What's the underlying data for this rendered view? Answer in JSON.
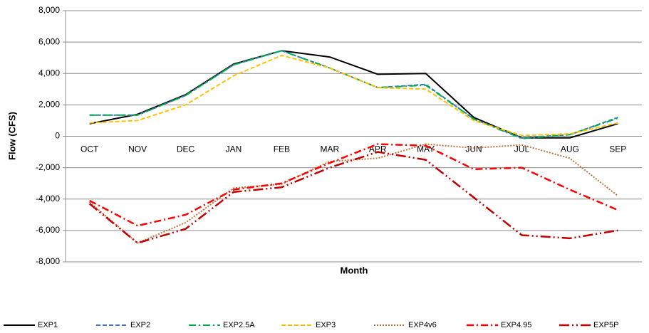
{
  "chart_data": {
    "type": "line",
    "xlabel": "Month",
    "ylabel": "Flow (CFS)",
    "categories": [
      "OCT",
      "NOV",
      "DEC",
      "JAN",
      "FEB",
      "MAR",
      "APR",
      "MAY",
      "JUN",
      "JUL",
      "AUG",
      "SEP"
    ],
    "ylim": [
      -8000,
      8000
    ],
    "yticks": [
      {
        "value": -8000,
        "label": "-8,000"
      },
      {
        "value": -6000,
        "label": "-6,000"
      },
      {
        "value": -4000,
        "label": "-4,000"
      },
      {
        "value": -2000,
        "label": "-2,000"
      },
      0,
      {
        "value": 2000,
        "label": "2,000"
      },
      {
        "value": 4000,
        "label": "4,000"
      },
      {
        "value": 6000,
        "label": "6,000"
      },
      {
        "value": 8000,
        "label": "8,000"
      }
    ],
    "grid": true,
    "legend": "bottom",
    "series": [
      {
        "name": "EXP1",
        "color": "#000000",
        "values": [
          800,
          1400,
          2650,
          4600,
          5450,
          5050,
          3950,
          4000,
          1200,
          -100,
          -100,
          800
        ]
      },
      {
        "name": "EXP2",
        "color": "#4472c4",
        "values": [
          1350,
          1350,
          2600,
          4550,
          5450,
          4350,
          3100,
          3300,
          1100,
          -100,
          100,
          1200
        ]
      },
      {
        "name": "EXP2.5A",
        "color": "#00b050",
        "values": [
          1350,
          1350,
          2600,
          4550,
          5450,
          4350,
          3100,
          3250,
          1100,
          -150,
          100,
          1150
        ]
      },
      {
        "name": "EXP3",
        "color": "#ffc000",
        "values": [
          850,
          1000,
          2000,
          3850,
          5150,
          4350,
          3100,
          3000,
          1000,
          50,
          150,
          850
        ]
      },
      {
        "name": "EXP4v6",
        "color": "#c0703a",
        "values": [
          -4200,
          -6800,
          -5500,
          -3300,
          -3050,
          -1600,
          -1400,
          -500,
          -750,
          -550,
          -1400,
          -3800
        ]
      },
      {
        "name": "EXP4.95",
        "color": "#ff0000",
        "values": [
          -4100,
          -5700,
          -5000,
          -3400,
          -3000,
          -1700,
          -500,
          -600,
          -2100,
          -2000,
          -3400,
          -4700
        ]
      },
      {
        "name": "EXP5P",
        "color": "#c00000",
        "values": [
          -4300,
          -6800,
          -5900,
          -3550,
          -3250,
          -2000,
          -1000,
          -1500,
          -3900,
          -6300,
          -6500,
          -6000
        ]
      }
    ]
  }
}
